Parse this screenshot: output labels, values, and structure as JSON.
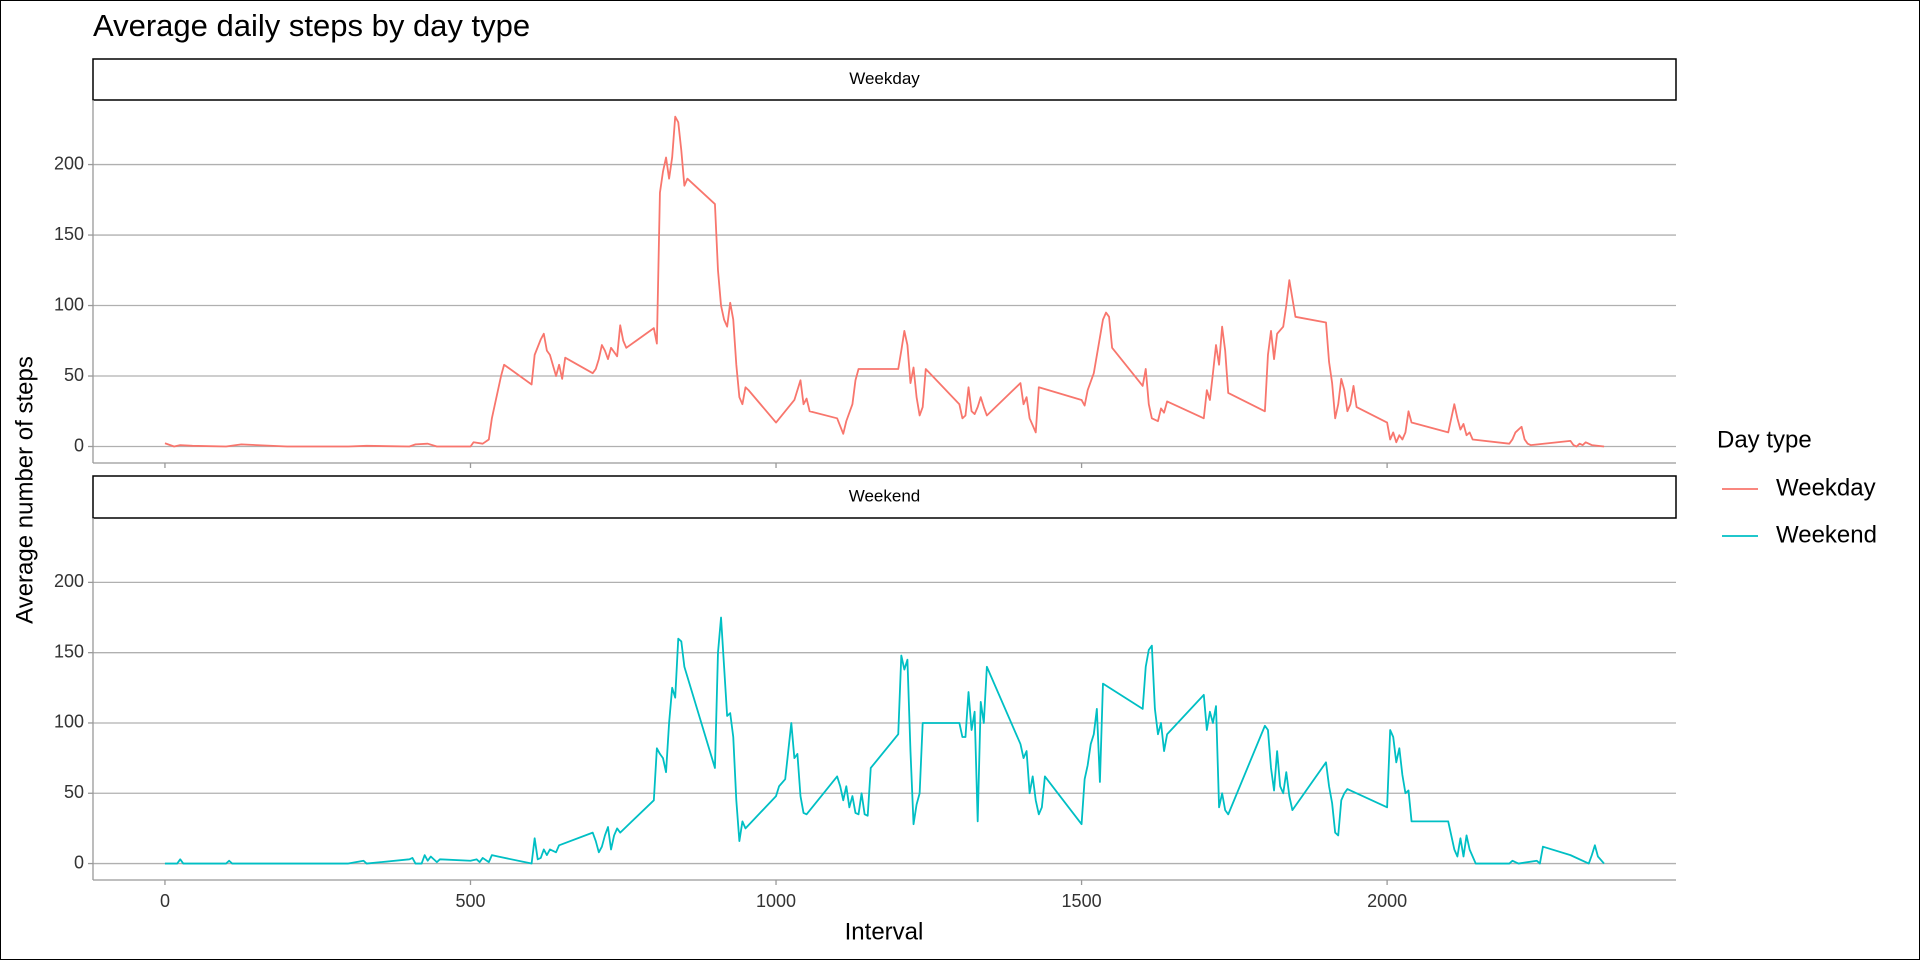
{
  "chart_data": {
    "type": "line",
    "title": "Average daily steps by day type",
    "x_label": "Interval",
    "y_label": "Average number of steps",
    "legend_title": "Day type",
    "facet": true,
    "grid": true,
    "xlim": [
      -117.75,
      2472.75
    ],
    "ylim": [
      -11.7,
      245.8
    ],
    "xticks": [
      0,
      500,
      1000,
      1500,
      2000
    ],
    "yticks": [
      0,
      50,
      100,
      150,
      200
    ],
    "series": [
      {
        "name": "Weekday",
        "color": "#F8766D",
        "x": [
          0,
          15,
          25,
          45,
          100,
          125,
          200,
          300,
          330,
          400,
          410,
          430,
          445,
          500,
          505,
          520,
          530,
          535,
          540,
          550,
          555,
          600,
          605,
          615,
          620,
          625,
          630,
          640,
          645,
          650,
          655,
          700,
          705,
          710,
          715,
          720,
          725,
          730,
          740,
          745,
          750,
          755,
          800,
          805,
          810,
          815,
          820,
          825,
          830,
          835,
          840,
          845,
          850,
          855,
          900,
          905,
          910,
          915,
          920,
          925,
          930,
          935,
          940,
          945,
          950,
          955,
          1000,
          1030,
          1040,
          1045,
          1050,
          1055,
          1100,
          1110,
          1115,
          1125,
          1130,
          1135,
          1200,
          1205,
          1210,
          1215,
          1220,
          1225,
          1230,
          1235,
          1240,
          1245,
          1300,
          1305,
          1310,
          1315,
          1320,
          1325,
          1330,
          1335,
          1340,
          1345,
          1400,
          1405,
          1410,
          1415,
          1425,
          1430,
          1500,
          1505,
          1510,
          1520,
          1535,
          1540,
          1545,
          1550,
          1600,
          1605,
          1610,
          1615,
          1625,
          1630,
          1635,
          1640,
          1700,
          1705,
          1710,
          1715,
          1720,
          1725,
          1730,
          1735,
          1740,
          1800,
          1805,
          1810,
          1815,
          1820,
          1830,
          1835,
          1840,
          1845,
          1850,
          1900,
          1905,
          1910,
          1915,
          1920,
          1925,
          1930,
          1935,
          1940,
          1945,
          1950,
          2000,
          2005,
          2010,
          2015,
          2020,
          2025,
          2030,
          2035,
          2040,
          2100,
          2110,
          2115,
          2120,
          2125,
          2130,
          2135,
          2140,
          2200,
          2205,
          2210,
          2215,
          2220,
          2225,
          2230,
          2235,
          2300,
          2305,
          2310,
          2315,
          2320,
          2325,
          2330,
          2335,
          2355
        ],
        "values": [
          2.3,
          0,
          1,
          0.5,
          0,
          1.5,
          0,
          0,
          0.5,
          0,
          1.5,
          2,
          0,
          0,
          3,
          2,
          5,
          20,
          30,
          50,
          58,
          44,
          65,
          76,
          80,
          68,
          65,
          50,
          58,
          48,
          63,
          52,
          55,
          62,
          72,
          68,
          62,
          70,
          64,
          86,
          75,
          70,
          84,
          73,
          180,
          195,
          205,
          190,
          205,
          234,
          230,
          210,
          185,
          190,
          172,
          125,
          100,
          90,
          85,
          102,
          90,
          58,
          35,
          30,
          42,
          40,
          17,
          33,
          47,
          30,
          34,
          25,
          20,
          9,
          18,
          30,
          47,
          55,
          55,
          68,
          82,
          72,
          45,
          56,
          35,
          22,
          28,
          55,
          30,
          20,
          22,
          42,
          25,
          23,
          28,
          35,
          28,
          22,
          45,
          30,
          35,
          20,
          10,
          42,
          33,
          29,
          40,
          52,
          90,
          95,
          92,
          70,
          43,
          55,
          30,
          20,
          18,
          27,
          24,
          32,
          20,
          40,
          33,
          52,
          72,
          58,
          85,
          68,
          38,
          25,
          65,
          82,
          62,
          80,
          85,
          100,
          118,
          105,
          92,
          88,
          60,
          45,
          20,
          30,
          48,
          40,
          25,
          30,
          43,
          28,
          17,
          5,
          10,
          3,
          8,
          5,
          10,
          25,
          17,
          10,
          30,
          20,
          12,
          16,
          8,
          10,
          5,
          2,
          5,
          10,
          12,
          14,
          5,
          2,
          1,
          4,
          1,
          0,
          2,
          1,
          3,
          2,
          1,
          0
        ]
      },
      {
        "name": "Weekend",
        "color": "#00BFC4",
        "x": [
          0,
          20,
          25,
          30,
          100,
          105,
          110,
          200,
          300,
          325,
          330,
          400,
          405,
          410,
          420,
          425,
          430,
          435,
          445,
          450,
          500,
          510,
          515,
          520,
          530,
          535,
          545,
          600,
          605,
          610,
          615,
          620,
          625,
          630,
          640,
          645,
          700,
          705,
          710,
          715,
          720,
          725,
          730,
          735,
          740,
          745,
          800,
          805,
          810,
          815,
          820,
          825,
          830,
          835,
          840,
          845,
          850,
          900,
          905,
          910,
          915,
          920,
          925,
          930,
          935,
          940,
          945,
          950,
          1000,
          1005,
          1015,
          1020,
          1025,
          1030,
          1035,
          1040,
          1045,
          1050,
          1100,
          1105,
          1110,
          1115,
          1120,
          1125,
          1130,
          1135,
          1140,
          1145,
          1150,
          1155,
          1200,
          1205,
          1210,
          1215,
          1220,
          1225,
          1230,
          1235,
          1240,
          1300,
          1305,
          1310,
          1315,
          1320,
          1325,
          1330,
          1335,
          1340,
          1345,
          1400,
          1405,
          1410,
          1415,
          1420,
          1425,
          1430,
          1435,
          1440,
          1500,
          1505,
          1510,
          1515,
          1520,
          1525,
          1530,
          1535,
          1600,
          1605,
          1610,
          1615,
          1620,
          1625,
          1630,
          1635,
          1640,
          1700,
          1705,
          1710,
          1715,
          1720,
          1725,
          1730,
          1735,
          1740,
          1800,
          1805,
          1810,
          1815,
          1820,
          1825,
          1830,
          1835,
          1840,
          1845,
          1900,
          1905,
          1910,
          1915,
          1920,
          1925,
          1930,
          1935,
          2000,
          2005,
          2010,
          2015,
          2020,
          2025,
          2030,
          2035,
          2040,
          2100,
          2105,
          2110,
          2115,
          2120,
          2125,
          2130,
          2135,
          2140,
          2145,
          2200,
          2205,
          2210,
          2215,
          2245,
          2250,
          2255,
          2300,
          2330,
          2335,
          2340,
          2345,
          2355
        ],
        "values": [
          0,
          0,
          3,
          0,
          0,
          2,
          0,
          0,
          0,
          2,
          0,
          3,
          4,
          0,
          0,
          6,
          2,
          5,
          1,
          3,
          2,
          3,
          1,
          4,
          1,
          6,
          5,
          0,
          18,
          3,
          4,
          10,
          6,
          10,
          8,
          13,
          22,
          16,
          8,
          12,
          20,
          26,
          10,
          20,
          25,
          22,
          45,
          82,
          78,
          75,
          65,
          100,
          125,
          118,
          160,
          158,
          140,
          68,
          150,
          175,
          140,
          105,
          107,
          90,
          45,
          16,
          30,
          25,
          48,
          55,
          60,
          80,
          100,
          75,
          78,
          48,
          36,
          35,
          62,
          55,
          45,
          55,
          40,
          48,
          36,
          35,
          50,
          35,
          34,
          68,
          92,
          148,
          138,
          145,
          80,
          28,
          42,
          50,
          100,
          100,
          90,
          90,
          122,
          95,
          108,
          30,
          115,
          100,
          140,
          85,
          75,
          80,
          50,
          62,
          45,
          35,
          40,
          62,
          28,
          60,
          70,
          85,
          92,
          110,
          58,
          128,
          110,
          140,
          152,
          155,
          110,
          92,
          100,
          80,
          92,
          120,
          95,
          108,
          100,
          112,
          40,
          50,
          38,
          35,
          98,
          95,
          68,
          52,
          80,
          55,
          50,
          65,
          48,
          38,
          72,
          55,
          43,
          22,
          20,
          45,
          50,
          53,
          40,
          95,
          90,
          72,
          82,
          63,
          50,
          52,
          30,
          30,
          20,
          10,
          5,
          18,
          5,
          20,
          10,
          5,
          0,
          0,
          2,
          1,
          0,
          2,
          0,
          12,
          6,
          0,
          6,
          13,
          5,
          0
        ]
      }
    ]
  }
}
